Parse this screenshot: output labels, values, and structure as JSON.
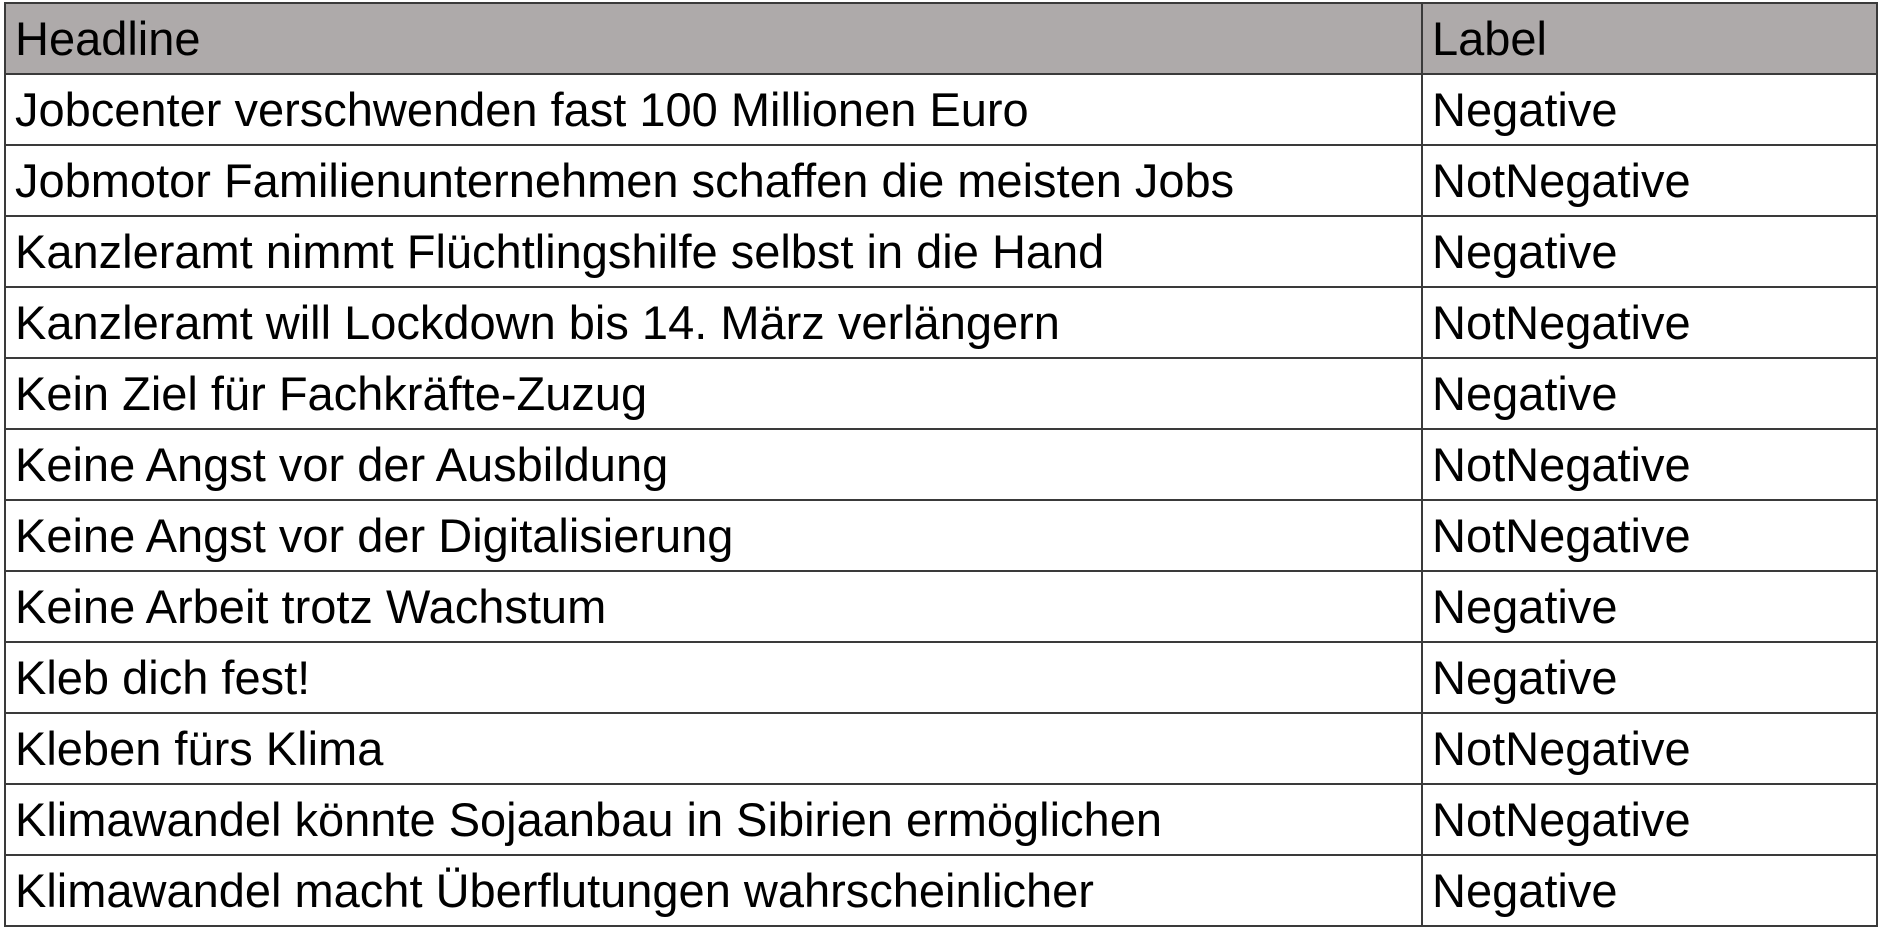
{
  "table": {
    "header_background": "#aeaaaa",
    "columns": [
      "Headline",
      "Label"
    ],
    "rows": [
      {
        "headline": "Jobcenter verschwenden fast 100 Millionen Euro",
        "label": "Negative"
      },
      {
        "headline": "Jobmotor Familienunternehmen schaffen die meisten Jobs",
        "label": "NotNegative"
      },
      {
        "headline": "Kanzleramt nimmt Flüchtlingshilfe selbst in die Hand",
        "label": "Negative"
      },
      {
        "headline": "Kanzleramt will Lockdown bis 14. März verlängern",
        "label": "NotNegative"
      },
      {
        "headline": "Kein Ziel für Fachkräfte-Zuzug",
        "label": "Negative"
      },
      {
        "headline": "Keine Angst vor der Ausbildung",
        "label": "NotNegative"
      },
      {
        "headline": "Keine Angst vor der Digitalisierung",
        "label": "NotNegative"
      },
      {
        "headline": "Keine Arbeit trotz Wachstum",
        "label": "Negative"
      },
      {
        "headline": "Kleb dich fest!",
        "label": "Negative"
      },
      {
        "headline": "Kleben fürs Klima",
        "label": "NotNegative"
      },
      {
        "headline": "Klimawandel könnte Sojaanbau in Sibirien ermöglichen",
        "label": "NotNegative"
      },
      {
        "headline": "Klimawandel macht Überflutungen wahrscheinlicher",
        "label": "Negative"
      }
    ]
  }
}
